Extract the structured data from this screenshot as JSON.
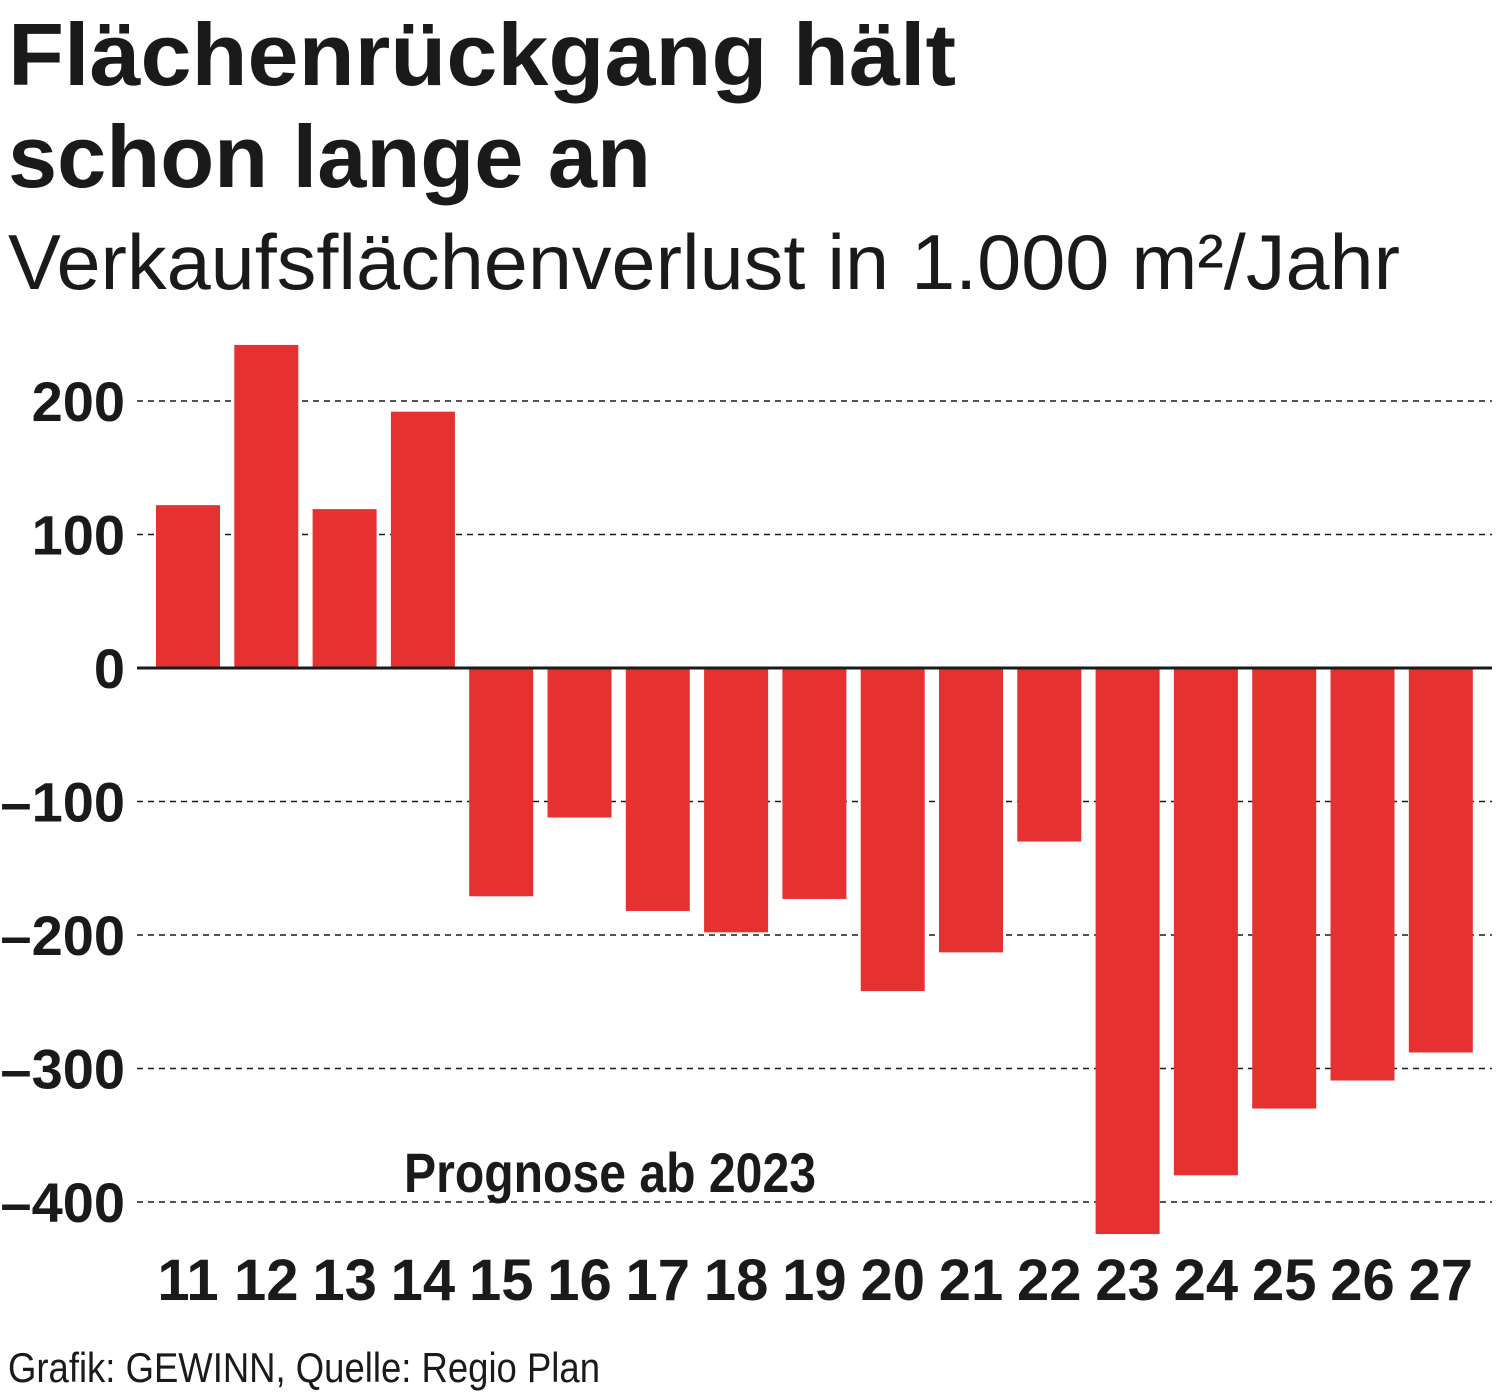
{
  "chart_data": {
    "type": "bar",
    "title_line1": "Flächenrückgang hält",
    "title_line2": "schon lange an",
    "subtitle": "Verkaufsflächenverlust in 1.000 m²/Jahr",
    "annotation": "Prognose ab 2023",
    "source": "Grafik: GEWINN, Quelle: Regio Plan",
    "xlabel": "",
    "ylabel": "",
    "categories": [
      "11",
      "12",
      "13",
      "14",
      "15",
      "16",
      "17",
      "18",
      "19",
      "20",
      "21",
      "22",
      "23",
      "24",
      "25",
      "26",
      "27"
    ],
    "values": [
      122,
      242,
      119,
      192,
      -171,
      -112,
      -182,
      -198,
      -173,
      -242,
      -213,
      -130,
      -424,
      -380,
      -330,
      -309,
      -288
    ],
    "yticks": [
      200,
      100,
      0,
      -100,
      -200,
      -300,
      -400
    ],
    "ytick_labels": [
      "200",
      "100",
      "0",
      "–100",
      "–200",
      "–300",
      "–400"
    ],
    "ylim": [
      -430,
      250
    ],
    "grid": true,
    "bar_color": "#e63131"
  }
}
